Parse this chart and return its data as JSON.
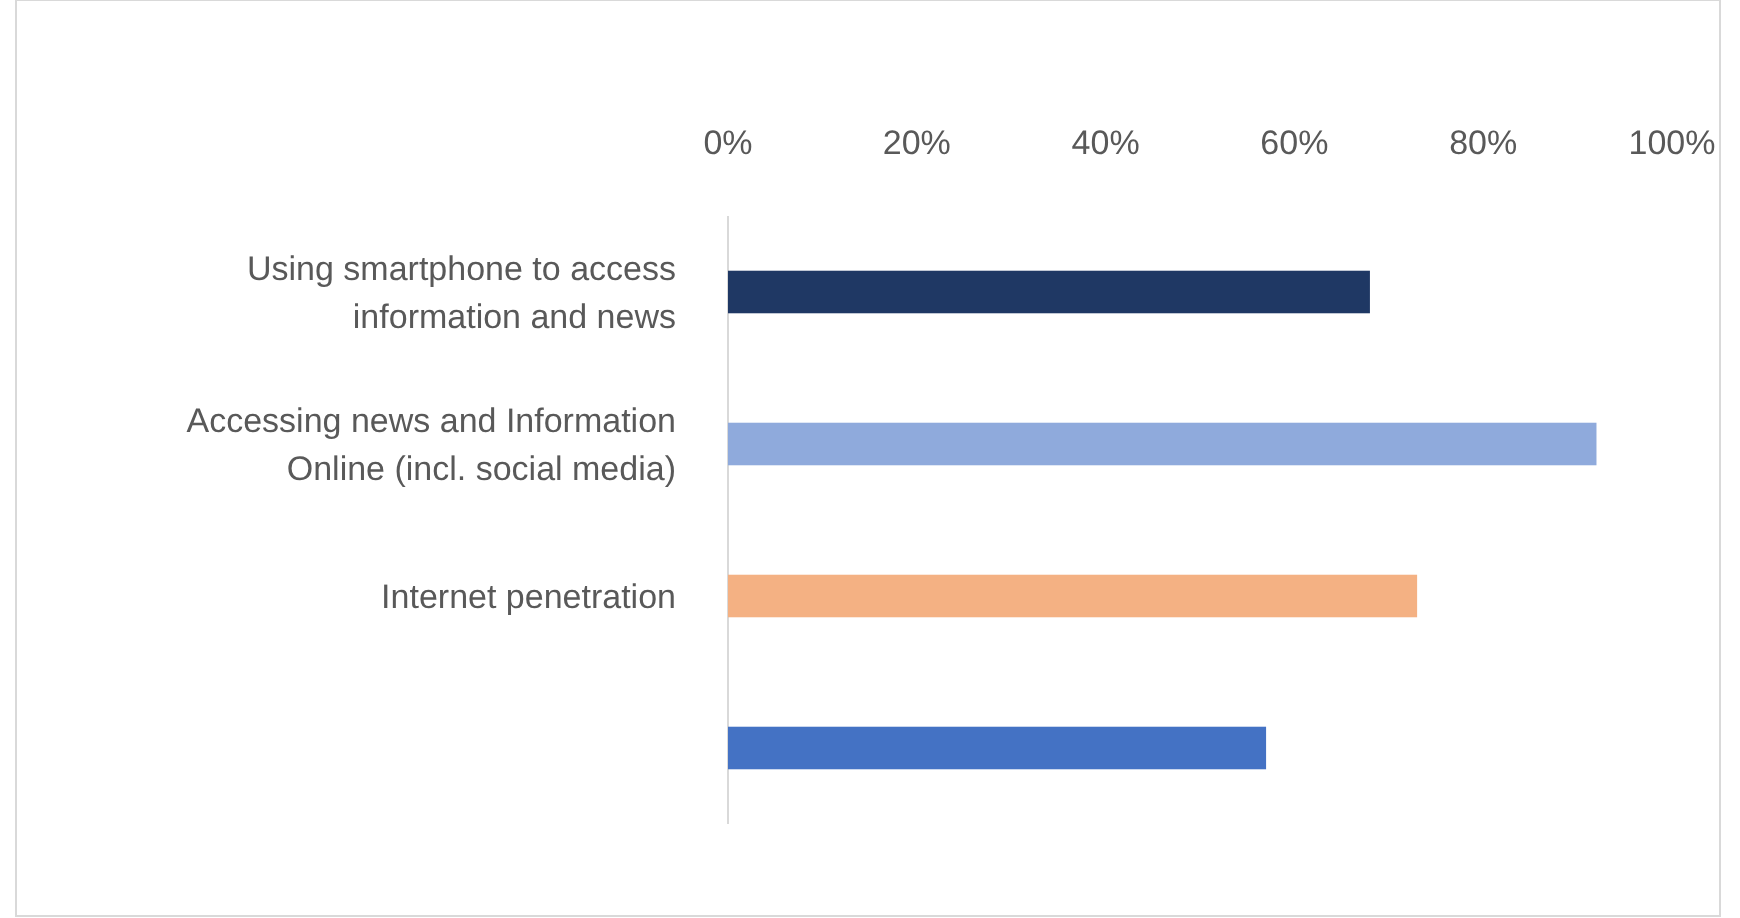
{
  "chart_data": {
    "type": "bar",
    "orientation": "horizontal",
    "categories": [
      "Using smartphone to access information and news",
      "Accessing news and Information Online (incl. social media)",
      "Internet penetration",
      null
    ],
    "values": [
      68,
      92,
      73,
      57
    ],
    "colors": [
      "#1f3864",
      "#8faadc",
      "#f4b183",
      "#4472c4"
    ],
    "xlim": [
      0,
      100
    ],
    "xticks": [
      {
        "value": 0,
        "label": "0%"
      },
      {
        "value": 20,
        "label": "20%"
      },
      {
        "value": 40,
        "label": "40%"
      },
      {
        "value": 60,
        "label": "60%"
      },
      {
        "value": 80,
        "label": "80%"
      },
      {
        "value": 100,
        "label": "100%"
      }
    ],
    "grid": false
  }
}
